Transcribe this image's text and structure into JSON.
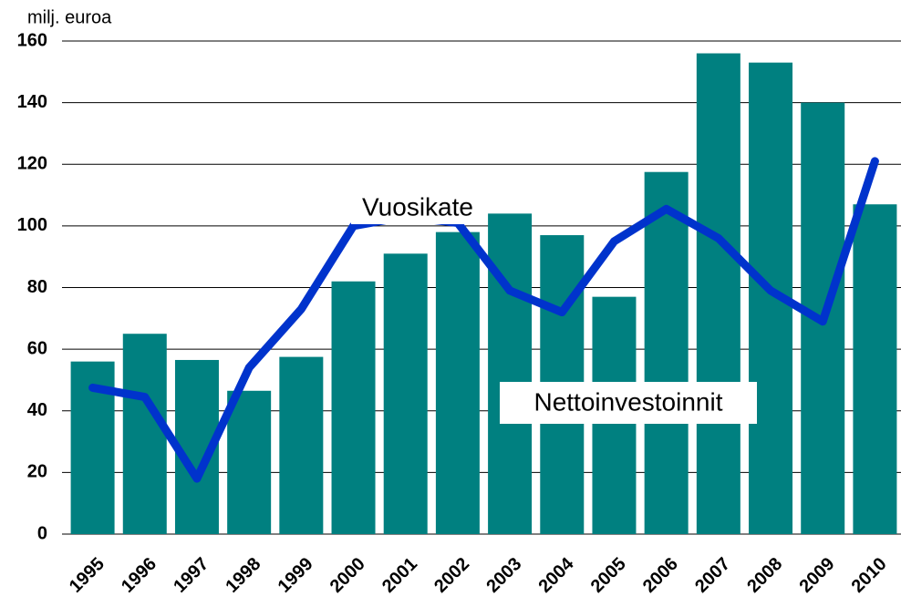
{
  "chart_data": {
    "type": "bar-line",
    "y_axis_label": "milj. euroa",
    "categories": [
      "1995",
      "1996",
      "1997",
      "1998",
      "1999",
      "2000",
      "2001",
      "2002",
      "2003",
      "2004",
      "2005",
      "2006",
      "2007",
      "2008",
      "2009",
      "2010"
    ],
    "series": [
      {
        "name": "Nettoinvestoinnit",
        "type": "bar",
        "color": "#008080",
        "values": [
          56,
          65,
          56.5,
          46.5,
          57.5,
          82,
          91,
          98,
          104,
          97,
          77,
          117.5,
          156,
          153,
          140,
          107
        ]
      },
      {
        "name": "Vuosikate",
        "type": "line",
        "color": "#0033cc",
        "values": [
          47.5,
          44.5,
          18,
          54,
          73,
          100,
          103,
          101,
          79,
          72,
          95,
          105.5,
          96,
          79,
          69,
          121
        ]
      }
    ],
    "ylim": [
      0,
      160
    ],
    "yticks": [
      0,
      20,
      40,
      60,
      80,
      100,
      120,
      140,
      160
    ],
    "grid": true
  }
}
